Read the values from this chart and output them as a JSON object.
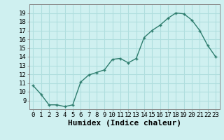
{
  "x": [
    0,
    1,
    2,
    3,
    4,
    5,
    6,
    7,
    8,
    9,
    10,
    11,
    12,
    13,
    14,
    15,
    16,
    17,
    18,
    19,
    20,
    21,
    22,
    23
  ],
  "y": [
    10.7,
    9.7,
    8.5,
    8.5,
    8.3,
    8.5,
    11.1,
    11.9,
    12.2,
    12.5,
    13.7,
    13.8,
    13.3,
    13.8,
    16.2,
    17.0,
    17.6,
    18.4,
    19.0,
    18.9,
    18.2,
    17.0,
    15.3,
    14.0
  ],
  "xlabel": "Humidex (Indice chaleur)",
  "ylim": [
    8,
    20
  ],
  "xlim": [
    -0.5,
    23.5
  ],
  "yticks": [
    9,
    10,
    11,
    12,
    13,
    14,
    15,
    16,
    17,
    18,
    19
  ],
  "xticks": [
    0,
    1,
    2,
    3,
    4,
    5,
    6,
    7,
    8,
    9,
    10,
    11,
    12,
    13,
    14,
    15,
    16,
    17,
    18,
    19,
    20,
    21,
    22,
    23
  ],
  "xtick_labels": [
    "0",
    "1",
    "2",
    "3",
    "4",
    "5",
    "6",
    "7",
    "8",
    "9",
    "10",
    "11",
    "12",
    "13",
    "14",
    "15",
    "16",
    "17",
    "18",
    "19",
    "20",
    "21",
    "22",
    "23"
  ],
  "line_color": "#2e7d6e",
  "marker": "+",
  "background_color": "#cff0f0",
  "grid_color": "#b0dede",
  "tick_fontsize": 6.5,
  "xlabel_fontsize": 8
}
